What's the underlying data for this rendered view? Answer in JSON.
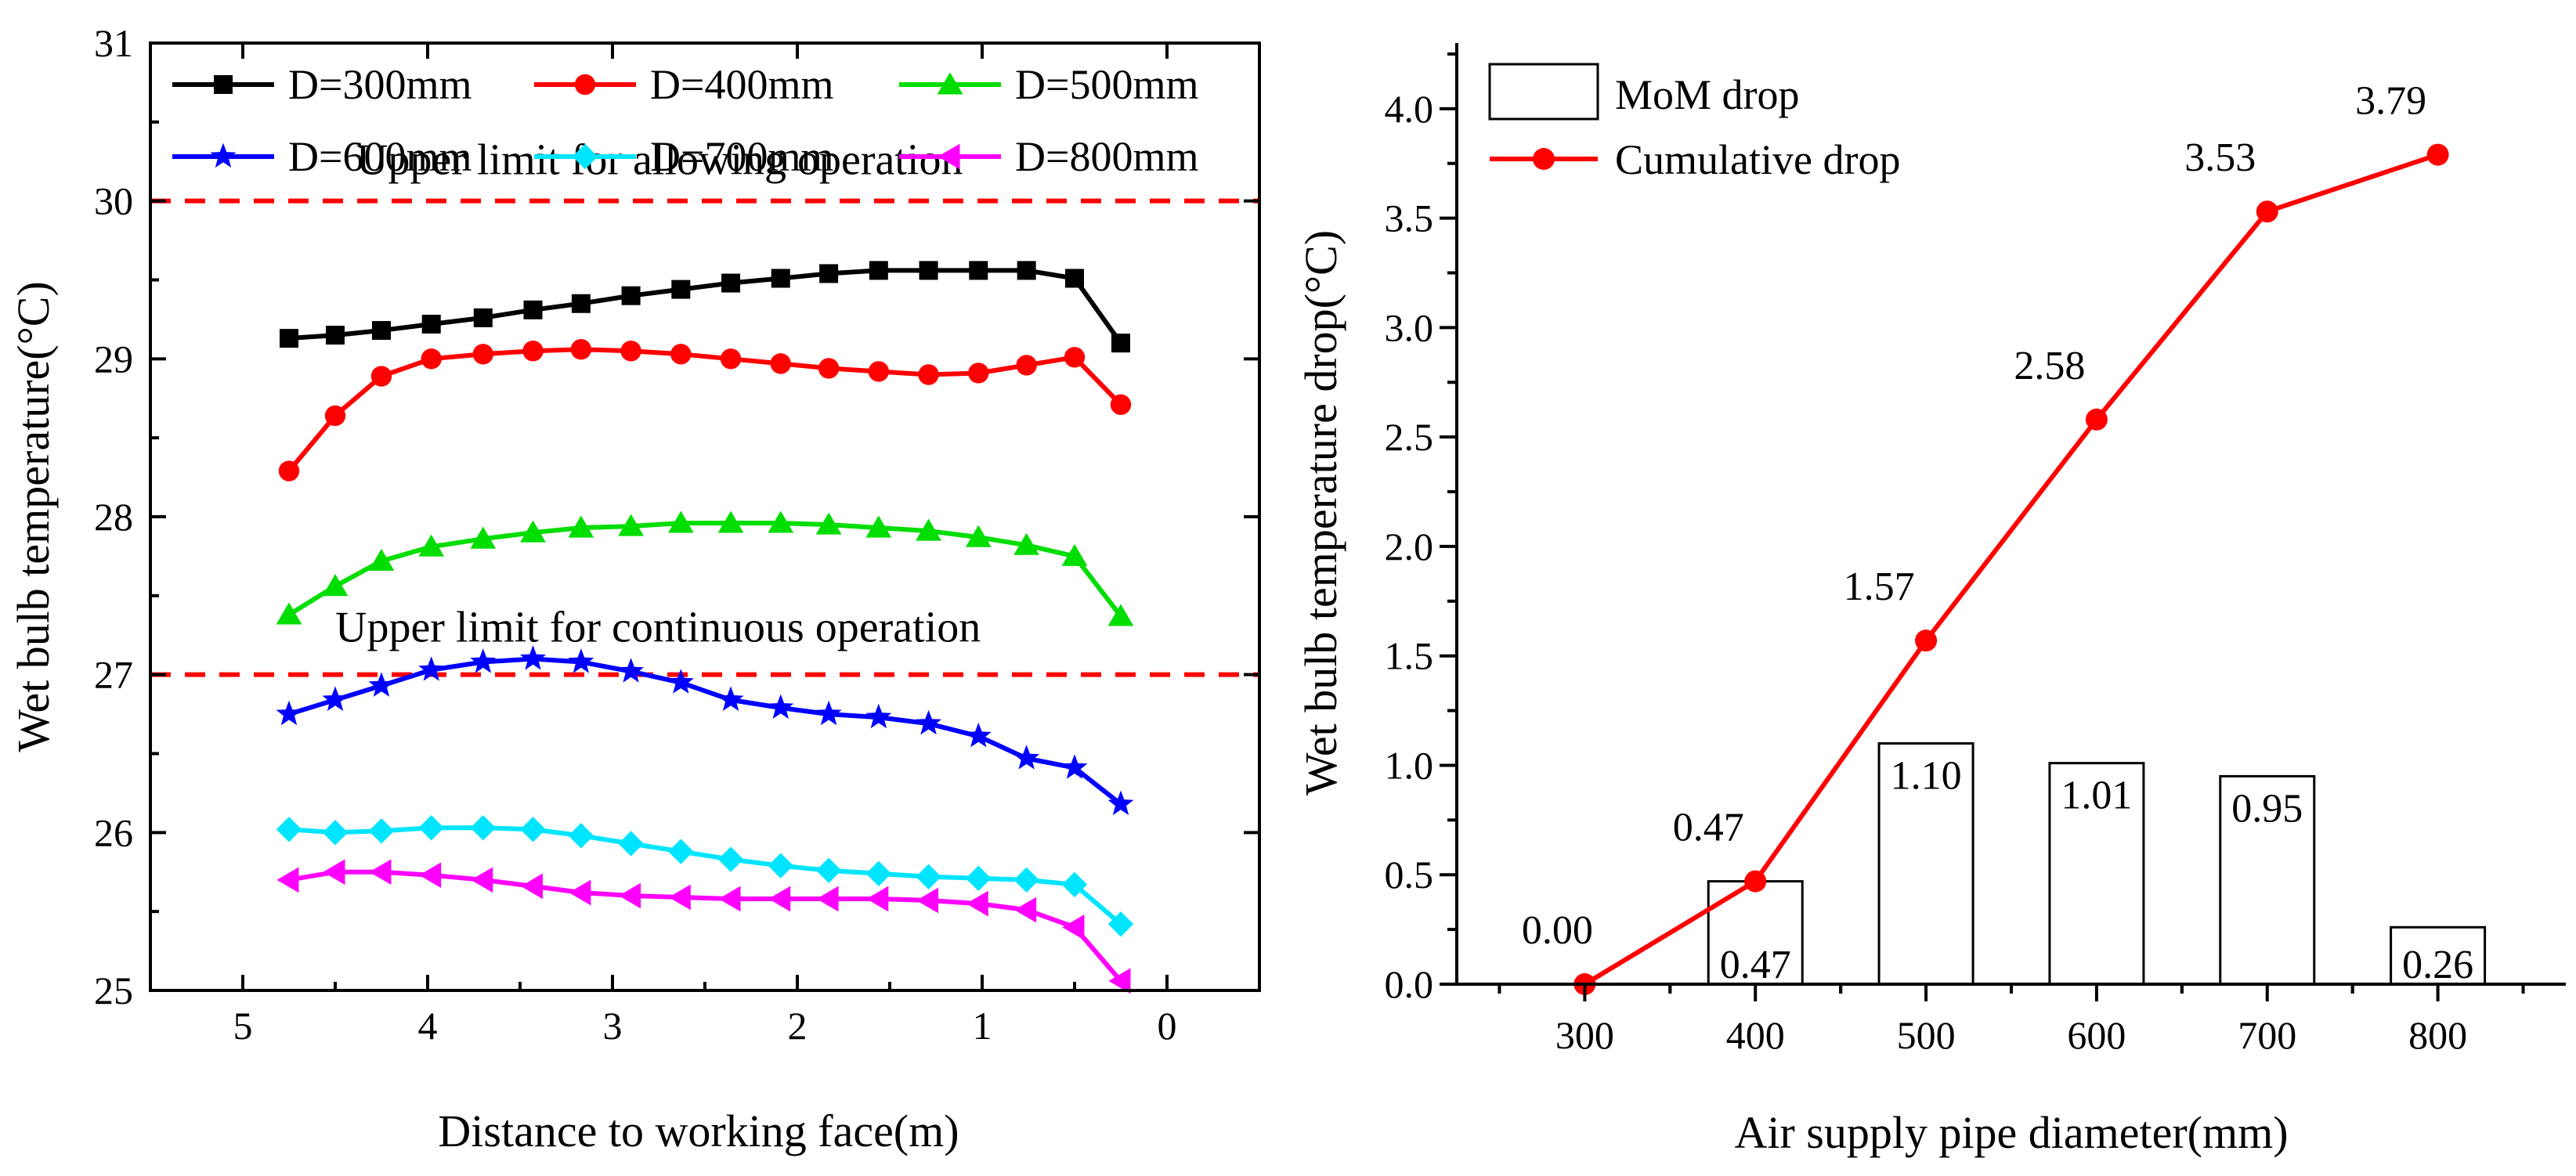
{
  "chart_data": [
    {
      "type": "line",
      "xlabel": "Distance to working face(m)",
      "ylabel": "Wet bulb temperature(°C)",
      "xlim": [
        5.5,
        -0.5
      ],
      "ylim": [
        25,
        31
      ],
      "x_ticks": [
        "5",
        "4",
        "3",
        "2",
        "1",
        "0"
      ],
      "x_tick_values": [
        5,
        4,
        3,
        2,
        1,
        0
      ],
      "y_ticks": [
        "25",
        "26",
        "27",
        "28",
        "29",
        "30",
        "31"
      ],
      "y_tick_values": [
        25,
        26,
        27,
        28,
        29,
        30,
        31
      ],
      "x": [
        4.75,
        4.5,
        4.25,
        3.98,
        3.7,
        3.43,
        3.17,
        2.9,
        2.63,
        2.36,
        2.09,
        1.83,
        1.56,
        1.29,
        1.02,
        0.76,
        0.5,
        0.25
      ],
      "series": [
        {
          "name": "D=300mm",
          "color": "#000000",
          "marker": "square",
          "values": [
            29.13,
            29.15,
            29.18,
            29.22,
            29.26,
            29.31,
            29.35,
            29.4,
            29.44,
            29.48,
            29.51,
            29.54,
            29.56,
            29.56,
            29.56,
            29.56,
            29.51,
            29.1
          ]
        },
        {
          "name": "D=400mm",
          "color": "#ff0000",
          "marker": "circle",
          "values": [
            28.29,
            28.64,
            28.89,
            29.0,
            29.03,
            29.05,
            29.06,
            29.05,
            29.03,
            29.0,
            28.97,
            28.94,
            28.92,
            28.9,
            28.91,
            28.96,
            29.01,
            28.71
          ]
        },
        {
          "name": "D=500mm",
          "color": "#00dd00",
          "marker": "triangle-up",
          "values": [
            27.38,
            27.56,
            27.72,
            27.81,
            27.86,
            27.9,
            27.93,
            27.94,
            27.96,
            27.96,
            27.96,
            27.95,
            27.93,
            27.91,
            27.87,
            27.82,
            27.75,
            27.37
          ]
        },
        {
          "name": "D=600mm",
          "color": "#0000ff",
          "marker": "star",
          "values": [
            26.75,
            26.84,
            26.93,
            27.03,
            27.08,
            27.1,
            27.08,
            27.02,
            26.95,
            26.84,
            26.79,
            26.75,
            26.73,
            26.69,
            26.61,
            26.47,
            26.41,
            26.18
          ]
        },
        {
          "name": "D=700mm",
          "color": "#00e5ff",
          "marker": "diamond",
          "values": [
            26.02,
            26.0,
            26.01,
            26.03,
            26.03,
            26.02,
            25.98,
            25.93,
            25.88,
            25.83,
            25.79,
            25.76,
            25.74,
            25.72,
            25.71,
            25.7,
            25.67,
            25.42
          ]
        },
        {
          "name": "D=800mm",
          "color": "#ff00ff",
          "marker": "triangle-left",
          "values": [
            25.7,
            25.75,
            25.75,
            25.73,
            25.7,
            25.66,
            25.62,
            25.6,
            25.59,
            25.58,
            25.58,
            25.58,
            25.58,
            25.57,
            25.55,
            25.51,
            25.4,
            25.06
          ]
        }
      ],
      "reference_lines": [
        {
          "y": 30,
          "label": "Upper limit for allowing operation",
          "color": "#ff0000",
          "style": "dashed"
        },
        {
          "y": 27,
          "label": "Upper limit for continuous operation",
          "color": "#ff0000",
          "style": "dashed"
        }
      ],
      "legend_position": "top"
    },
    {
      "type": "bar+line",
      "xlabel": "Air supply pipe diameter(mm)",
      "ylabel": "Wet bulb temperature drop(°C)",
      "categories": [
        "300",
        "400",
        "500",
        "600",
        "700",
        "800"
      ],
      "x_values": [
        300,
        400,
        500,
        600,
        700,
        800
      ],
      "xlim": [
        225,
        875
      ],
      "ylim": [
        0,
        4.3
      ],
      "y_ticks": [
        "0.0",
        "0.5",
        "1.0",
        "1.5",
        "2.0",
        "2.5",
        "3.0",
        "3.5",
        "4.0"
      ],
      "y_tick_values": [
        0,
        0.5,
        1.0,
        1.5,
        2.0,
        2.5,
        3.0,
        3.5,
        4.0
      ],
      "series": [
        {
          "name": "MoM drop",
          "kind": "bar",
          "color": "#ffffff",
          "edge": "#000000",
          "values": [
            null,
            0.47,
            1.1,
            1.01,
            0.95,
            0.26
          ],
          "labels": [
            "",
            "0.47",
            "1.10",
            "1.01",
            "0.95",
            "0.26"
          ]
        },
        {
          "name": "Cumulative drop",
          "kind": "line",
          "color": "#ff0000",
          "marker": "circle",
          "values": [
            0.0,
            0.47,
            1.57,
            2.58,
            3.53,
            3.79
          ],
          "labels": [
            "0.00",
            "0.47",
            "1.57",
            "2.58",
            "3.53",
            "3.79"
          ]
        }
      ],
      "legend_position": "top-left"
    }
  ]
}
